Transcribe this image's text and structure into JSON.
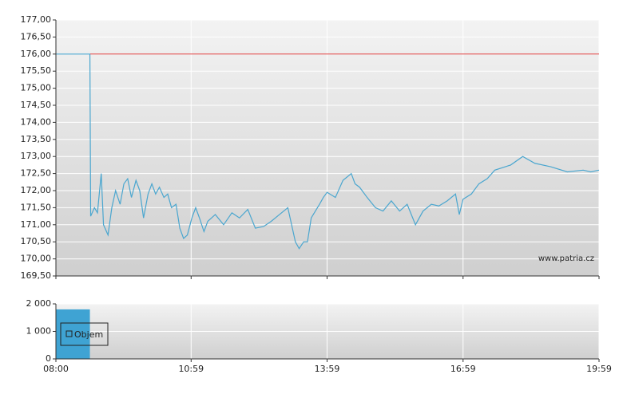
{
  "chart_data": [
    {
      "type": "line",
      "xlim": [
        0,
        719
      ],
      "xticks": [
        0,
        179,
        359,
        539,
        719
      ],
      "ylim": [
        169.5,
        177
      ],
      "yticks": [
        {
          "value": 169.5,
          "label": "169,50"
        },
        {
          "value": 170,
          "label": "170,00"
        },
        {
          "value": 170.5,
          "label": "170,50"
        },
        {
          "value": 171,
          "label": "171,00"
        },
        {
          "value": 171.5,
          "label": "171,50"
        },
        {
          "value": 172,
          "label": "172,00"
        },
        {
          "value": 172.5,
          "label": "172,50"
        },
        {
          "value": 173,
          "label": "173,00"
        },
        {
          "value": 173.5,
          "label": "173,50"
        },
        {
          "value": 174,
          "label": "174,00"
        },
        {
          "value": 174.5,
          "label": "174,50"
        },
        {
          "value": 175,
          "label": "175,00"
        },
        {
          "value": 175.5,
          "label": "175,50"
        },
        {
          "value": 176,
          "label": "176,00"
        },
        {
          "value": 176.5,
          "label": "176,50"
        },
        {
          "value": 177,
          "label": "177,00"
        }
      ],
      "grid": true,
      "reference_line": {
        "value": 176,
        "color": "#e03c3c"
      },
      "annotation": "www.patria.cz",
      "series": [
        {
          "color": "#4aa6cf",
          "x": [
            0,
            45,
            46,
            51,
            55,
            60,
            63,
            69,
            74,
            79,
            85,
            90,
            95,
            100,
            106,
            111,
            116,
            122,
            127,
            132,
            137,
            143,
            148,
            153,
            159,
            164,
            169,
            174,
            180,
            185,
            190,
            196,
            201,
            211,
            222,
            233,
            243,
            254,
            264,
            275,
            285,
            296,
            307,
            312,
            317,
            322,
            328,
            333,
            338,
            349,
            354,
            359,
            370,
            380,
            391,
            396,
            402,
            412,
            423,
            433,
            444,
            455,
            465,
            476,
            486,
            497,
            507,
            518,
            529,
            534,
            539,
            550,
            560,
            571,
            581,
            602,
            618,
            634,
            655,
            677,
            698,
            708,
            719
          ],
          "values": [
            176,
            176,
            171.25,
            171.5,
            171.35,
            172.5,
            171,
            170.7,
            171.5,
            172,
            171.6,
            172.2,
            172.35,
            171.8,
            172.3,
            172,
            171.2,
            171.9,
            172.2,
            171.9,
            172.1,
            171.8,
            171.9,
            171.5,
            171.6,
            170.9,
            170.6,
            170.7,
            171.2,
            171.5,
            171.2,
            170.8,
            171.1,
            171.3,
            171,
            171.35,
            171.2,
            171.45,
            170.9,
            170.95,
            171.1,
            171.3,
            171.5,
            171,
            170.5,
            170.3,
            170.5,
            170.5,
            171.2,
            171.6,
            171.8,
            171.95,
            171.8,
            172.3,
            172.5,
            172.2,
            172.1,
            171.8,
            171.5,
            171.4,
            171.7,
            171.4,
            171.6,
            171,
            171.4,
            171.6,
            171.55,
            171.7,
            171.9,
            171.3,
            171.75,
            171.9,
            172.2,
            172.35,
            172.6,
            172.75,
            173,
            172.8,
            172.7,
            172.55,
            172.6,
            172.55,
            172.6
          ]
        }
      ]
    },
    {
      "type": "histogram",
      "xlim": [
        0,
        719
      ],
      "xticks": [
        {
          "value": 0,
          "label": "08:00"
        },
        {
          "value": 179,
          "label": "10:59"
        },
        {
          "value": 359,
          "label": "13:59"
        },
        {
          "value": 539,
          "label": "16:59"
        },
        {
          "value": 719,
          "label": "19:59"
        }
      ],
      "ylim": [
        0,
        2000
      ],
      "yticks": [
        0,
        {
          "value": 1000,
          "label": "1 000"
        },
        {
          "value": 2000,
          "label": "2 000"
        }
      ],
      "grid": true,
      "bins": [
        0,
        45
      ],
      "series": [
        {
          "name": "Objem",
          "color": "#3fa3d3",
          "values": [
            1800
          ]
        }
      ]
    }
  ]
}
